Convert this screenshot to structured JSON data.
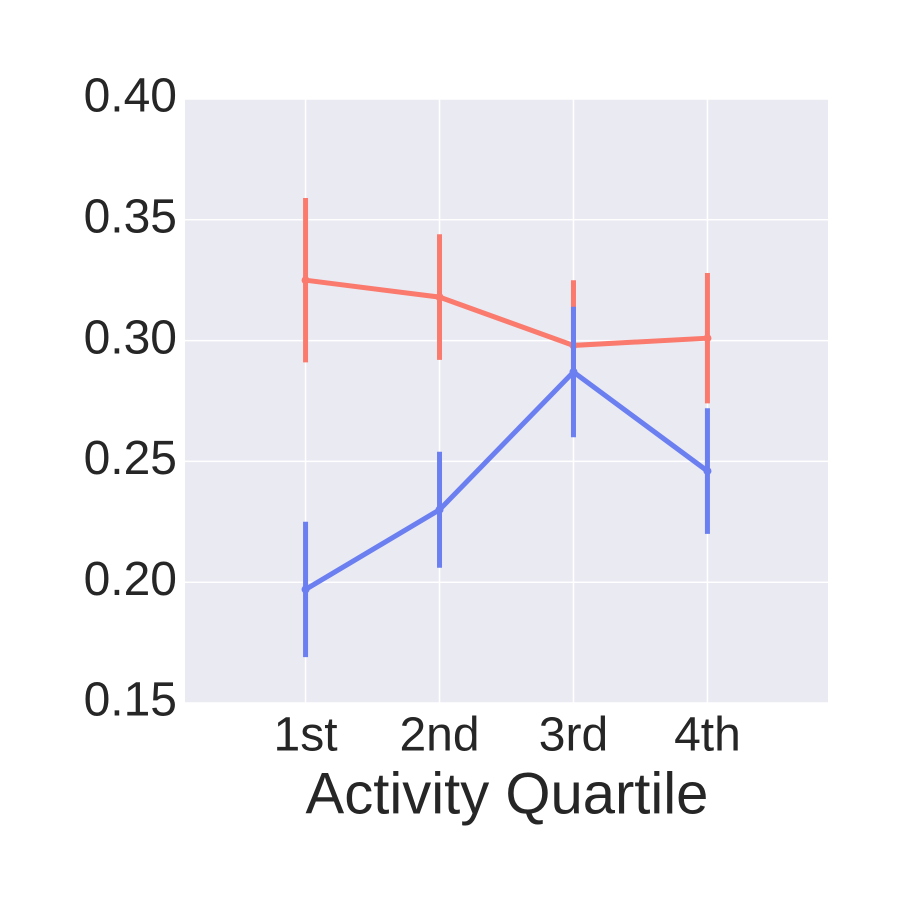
{
  "chart_data": {
    "type": "line",
    "x_label": "Activity Quartile",
    "categories": [
      "1st",
      "2nd",
      "3rd",
      "4th"
    ],
    "series": [
      {
        "color": "#fa7a6e",
        "values": [
          0.325,
          0.318,
          0.298,
          0.301
        ],
        "errors": [
          0.034,
          0.026,
          0.027,
          0.027
        ]
      },
      {
        "color": "#6b7ff0",
        "values": [
          0.197,
          0.23,
          0.287,
          0.246
        ],
        "errors": [
          0.028,
          0.024,
          0.027,
          0.026
        ]
      }
    ],
    "ylim": [
      0.15,
      0.4
    ],
    "yticks": [
      0.15,
      {
        "value": 0.2,
        "label": "0.20"
      },
      0.25,
      {
        "value": 0.3,
        "label": "0.30"
      },
      0.35,
      {
        "value": 0.4,
        "label": "0.40"
      }
    ],
    "grid": true
  }
}
